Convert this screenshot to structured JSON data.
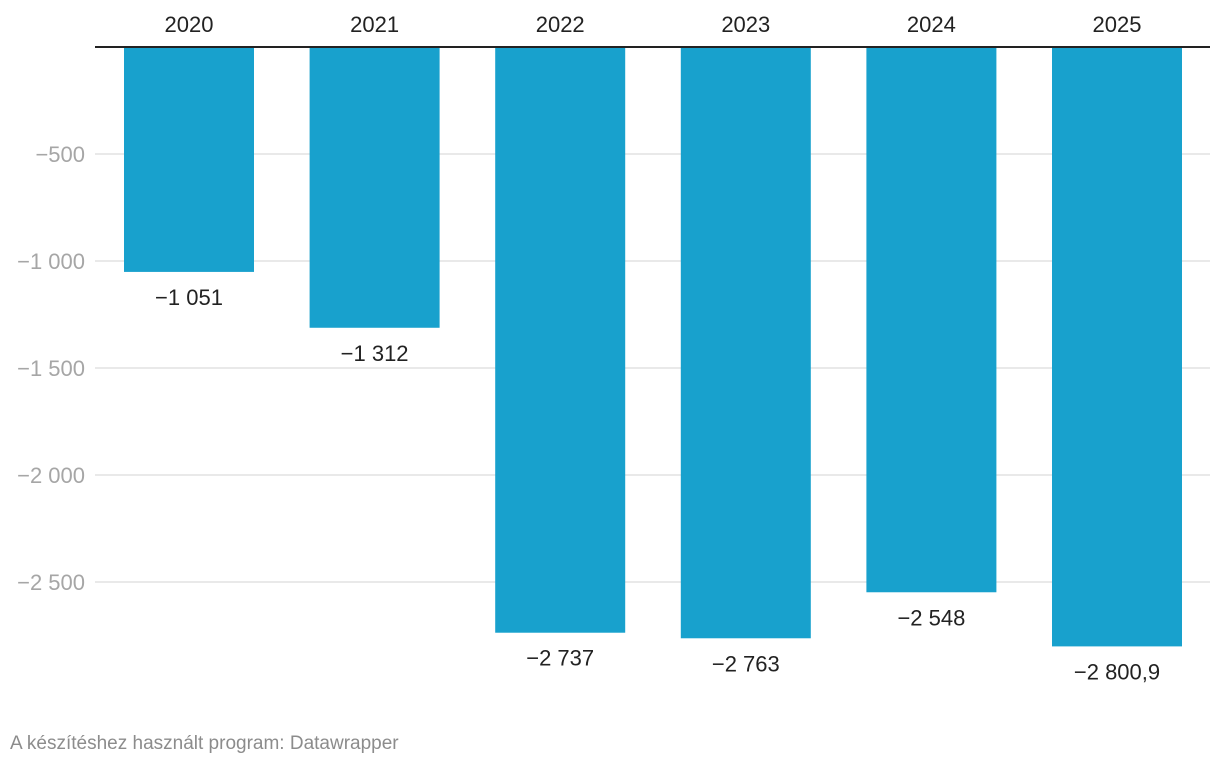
{
  "chart_data": {
    "type": "bar",
    "orientation": "vertical",
    "categories": [
      "2020",
      "2021",
      "2022",
      "2023",
      "2024",
      "2025"
    ],
    "values": [
      -1051,
      -1312,
      -2737,
      -2763,
      -2548,
      -2800.9
    ],
    "value_labels": [
      "−1 051",
      "−1 312",
      "−2 737",
      "−2 763",
      "−2 548",
      "−2 800,9"
    ],
    "y_ticks": [
      -500,
      -1000,
      -1500,
      -2000,
      -2500
    ],
    "y_tick_labels": [
      "−500",
      "−1 000",
      "−1 500",
      "−2 000",
      "−2 500"
    ],
    "ylim": [
      -3000,
      0
    ],
    "category_axis_position": "top",
    "grid": true,
    "bar_color": "#18a1cd"
  },
  "footer": {
    "credit": "A készítéshez használt program: Datawrapper"
  }
}
